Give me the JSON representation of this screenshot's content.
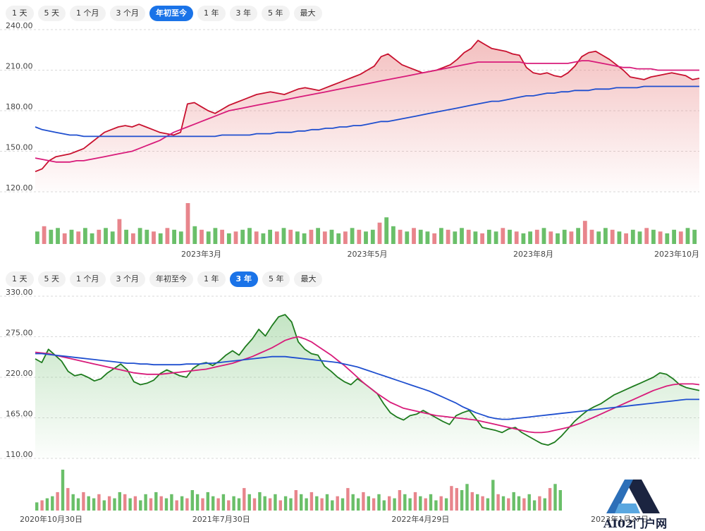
{
  "panels": [
    {
      "id": "ytd",
      "tabs": [
        "1 天",
        "5 天",
        "1 个月",
        "3 个月",
        "年初至今",
        "1 年",
        "3 年",
        "5 年",
        "最大"
      ],
      "active_tab": "年初至今"
    },
    {
      "id": "3y",
      "tabs": [
        "1 天",
        "5 天",
        "1 个月",
        "3 个月",
        "年初至今",
        "1 年",
        "3 年",
        "5 年",
        "最大"
      ],
      "active_tab": "3 年"
    }
  ],
  "chart_data": [
    {
      "type": "line",
      "title": "",
      "ylim": [
        120,
        240
      ],
      "y_ticks": [
        "240.00",
        "210.00",
        "180.00",
        "150.00",
        "120.00"
      ],
      "y_tick_values": [
        240,
        210,
        180,
        150,
        120
      ],
      "x_ticks": [
        "2023年3月",
        "2023年5月",
        "2023年8月",
        "2023年10月"
      ],
      "x_tick_positions": [
        0.25,
        0.5,
        0.75,
        0.97
      ],
      "colors": {
        "price": "#c8102e",
        "fill": "#e57373",
        "ma_short": "#d81b7a",
        "ma_long": "#1f4fcf",
        "vol_up": "#6abf69",
        "vol_down": "#e8858c"
      },
      "series": [
        {
          "name": "price",
          "values": [
            135,
            137,
            143,
            146,
            147,
            148,
            150,
            152,
            156,
            160,
            164,
            166,
            168,
            169,
            168,
            170,
            168,
            166,
            164,
            163,
            162,
            164,
            185,
            186,
            183,
            180,
            178,
            181,
            184,
            186,
            188,
            190,
            192,
            193,
            194,
            193,
            192,
            194,
            196,
            197,
            196,
            195,
            197,
            199,
            201,
            203,
            205,
            207,
            210,
            213,
            220,
            222,
            218,
            214,
            212,
            210,
            208,
            209,
            210,
            212,
            214,
            218,
            223,
            226,
            232,
            229,
            226,
            225,
            224,
            222,
            221,
            212,
            208,
            207,
            208,
            206,
            205,
            208,
            213,
            220,
            223,
            224,
            221,
            218,
            214,
            210,
            205,
            204,
            203,
            205,
            206,
            207,
            208,
            207,
            206,
            203,
            204
          ],
          "render": "area"
        },
        {
          "name": "MA short",
          "values": [
            145,
            144,
            143,
            142,
            142,
            142,
            143,
            143,
            144,
            145,
            146,
            147,
            148,
            149,
            150,
            152,
            154,
            156,
            158,
            161,
            164,
            166,
            168,
            170,
            172,
            174,
            176,
            178,
            180,
            181,
            182,
            183,
            184,
            185,
            186,
            187,
            188,
            189,
            190,
            191,
            192,
            193,
            194,
            195,
            196,
            197,
            198,
            199,
            200,
            201,
            202,
            203,
            204,
            205,
            206,
            207,
            208,
            209,
            210,
            211,
            212,
            213,
            214,
            215,
            216,
            216,
            216,
            216,
            216,
            216,
            216,
            215,
            215,
            215,
            215,
            215,
            215,
            215,
            216,
            217,
            217,
            216,
            215,
            214,
            213,
            212,
            212,
            211,
            211,
            211,
            210,
            210,
            210,
            210,
            210,
            210,
            210
          ],
          "render": "line"
        },
        {
          "name": "MA long",
          "values": [
            168,
            166,
            165,
            164,
            163,
            162,
            162,
            161,
            161,
            161,
            161,
            161,
            161,
            161,
            161,
            161,
            161,
            161,
            161,
            161,
            161,
            161,
            161,
            161,
            161,
            161,
            161,
            162,
            162,
            162,
            162,
            162,
            163,
            163,
            163,
            164,
            164,
            164,
            165,
            165,
            166,
            166,
            167,
            167,
            168,
            168,
            169,
            169,
            170,
            171,
            172,
            172,
            173,
            174,
            175,
            176,
            177,
            178,
            179,
            180,
            181,
            182,
            183,
            184,
            185,
            186,
            187,
            187,
            188,
            189,
            190,
            191,
            191,
            192,
            193,
            193,
            194,
            194,
            195,
            195,
            195,
            196,
            196,
            196,
            197,
            197,
            197,
            197,
            198,
            198,
            198,
            198,
            198,
            198,
            198,
            198,
            198
          ],
          "render": "line"
        }
      ],
      "volume": [
        7,
        10,
        8,
        9,
        6,
        8,
        7,
        9,
        6,
        8,
        9,
        7,
        14,
        8,
        6,
        9,
        8,
        7,
        6,
        9,
        8,
        7,
        23,
        10,
        8,
        7,
        9,
        8,
        6,
        7,
        8,
        9,
        7,
        6,
        8,
        7,
        9,
        8,
        7,
        6,
        8,
        9,
        7,
        8,
        6,
        7,
        9,
        8,
        7,
        8,
        12,
        15,
        10,
        8,
        7,
        9,
        8,
        7,
        6,
        9,
        8,
        7,
        9,
        8,
        7,
        6,
        8,
        7,
        9,
        8,
        7,
        6,
        7,
        8,
        9,
        7,
        6,
        8,
        7,
        9,
        13,
        8,
        7,
        9,
        8,
        7,
        6,
        8,
        7,
        9,
        8,
        7,
        6,
        8,
        7,
        9,
        8
      ],
      "volume_up": [
        true,
        false,
        true,
        true,
        false,
        true,
        false,
        true,
        true,
        false,
        true,
        true,
        false,
        true,
        false,
        true,
        true,
        false,
        true,
        false,
        true,
        true,
        false,
        true,
        false,
        true,
        true,
        false,
        true,
        false,
        true,
        true,
        false,
        true,
        true,
        false,
        true,
        false,
        true,
        true,
        false,
        true,
        false,
        true,
        true,
        false,
        true,
        false,
        true,
        true,
        false,
        true,
        true,
        false,
        true,
        false,
        true,
        true,
        false,
        true,
        false,
        true,
        true,
        false,
        true,
        false,
        true,
        true,
        false,
        true,
        false,
        true,
        true,
        false,
        true,
        false,
        true,
        true,
        false,
        true,
        false,
        false,
        true,
        true,
        false,
        true,
        false,
        true,
        true,
        false,
        true,
        false,
        true,
        true,
        false,
        true,
        true
      ]
    },
    {
      "type": "line",
      "title": "",
      "ylim": [
        110,
        330
      ],
      "y_ticks": [
        "330.00",
        "275.00",
        "220.00",
        "165.00",
        "110.00"
      ],
      "y_tick_values": [
        330,
        275,
        220,
        165,
        110
      ],
      "x_ticks": [
        "2020年10月30日",
        "2021年7月30日",
        "2022年4月29日",
        "2023年1月27日"
      ],
      "x_tick_positions": [
        0.0,
        0.28,
        0.58,
        0.88
      ],
      "colors": {
        "price": "#1e7b1e",
        "fill": "#7cc47c",
        "ma_short": "#d81b7a",
        "ma_long": "#1f4fcf",
        "vol_up": "#6abf69",
        "vol_down": "#e8858c"
      },
      "series": [
        {
          "name": "price",
          "values": [
            245,
            240,
            258,
            250,
            242,
            228,
            222,
            224,
            220,
            215,
            218,
            226,
            232,
            238,
            230,
            214,
            210,
            212,
            216,
            225,
            230,
            226,
            222,
            220,
            232,
            238,
            240,
            236,
            242,
            250,
            256,
            250,
            262,
            272,
            285,
            276,
            290,
            302,
            305,
            295,
            268,
            258,
            252,
            250,
            235,
            228,
            220,
            214,
            210,
            218,
            212,
            205,
            198,
            184,
            172,
            166,
            162,
            168,
            170,
            175,
            170,
            165,
            160,
            156,
            168,
            172,
            175,
            164,
            152,
            150,
            148,
            145,
            150,
            152,
            145,
            140,
            135,
            130,
            128,
            132,
            140,
            150,
            160,
            168,
            175,
            180,
            184,
            190,
            196,
            200,
            204,
            208,
            212,
            216,
            220,
            226,
            224,
            218,
            210,
            206,
            204,
            202
          ],
          "render": "area"
        },
        {
          "name": "MA short",
          "values": [
            254,
            253,
            252,
            250,
            248,
            246,
            244,
            242,
            240,
            238,
            236,
            234,
            232,
            230,
            228,
            226,
            225,
            224,
            224,
            224,
            225,
            226,
            227,
            228,
            229,
            230,
            231,
            233,
            235,
            237,
            239,
            242,
            245,
            248,
            252,
            256,
            260,
            265,
            270,
            273,
            275,
            272,
            268,
            262,
            256,
            250,
            243,
            236,
            228,
            220,
            212,
            205,
            198,
            192,
            186,
            182,
            178,
            176,
            174,
            172,
            170,
            168,
            167,
            166,
            165,
            164,
            163,
            162,
            160,
            158,
            156,
            154,
            152,
            150,
            148,
            146,
            145,
            145,
            146,
            148,
            150,
            152,
            155,
            158,
            162,
            166,
            170,
            174,
            178,
            182,
            186,
            190,
            194,
            198,
            202,
            205,
            208,
            210,
            211,
            211,
            211,
            210
          ],
          "render": "line"
        },
        {
          "name": "MA long",
          "values": [
            252,
            252,
            251,
            250,
            249,
            248,
            247,
            246,
            245,
            244,
            243,
            242,
            241,
            240,
            239,
            239,
            238,
            238,
            237,
            237,
            237,
            237,
            237,
            238,
            238,
            238,
            239,
            239,
            240,
            241,
            242,
            243,
            244,
            245,
            246,
            247,
            248,
            248,
            248,
            247,
            246,
            245,
            244,
            243,
            242,
            241,
            240,
            238,
            236,
            234,
            231,
            228,
            225,
            222,
            219,
            216,
            213,
            210,
            207,
            204,
            201,
            197,
            193,
            189,
            185,
            180,
            176,
            172,
            169,
            166,
            164,
            163,
            163,
            164,
            165,
            166,
            167,
            168,
            169,
            170,
            171,
            172,
            173,
            174,
            175,
            176,
            177,
            178,
            179,
            180,
            181,
            182,
            183,
            184,
            185,
            186,
            187,
            188,
            189,
            190,
            190,
            190
          ],
          "render": "line"
        }
      ],
      "volume": [
        8,
        10,
        12,
        14,
        18,
        40,
        22,
        16,
        12,
        18,
        14,
        12,
        16,
        10,
        14,
        12,
        18,
        16,
        12,
        14,
        10,
        16,
        12,
        18,
        14,
        12,
        16,
        10,
        14,
        12,
        20,
        16,
        12,
        18,
        14,
        12,
        16,
        10,
        14,
        12,
        22,
        16,
        12,
        18,
        14,
        12,
        16,
        10,
        14,
        12,
        20,
        16,
        12,
        18,
        14,
        12,
        16,
        10,
        14,
        12,
        22,
        16,
        12,
        18,
        14,
        12,
        16,
        10,
        14,
        12,
        20,
        16,
        12,
        18,
        14,
        12,
        16,
        10,
        14,
        12,
        24,
        22,
        20,
        26,
        18,
        16,
        14,
        12,
        30,
        16,
        14,
        12,
        18,
        14,
        12,
        16,
        10,
        14,
        12,
        22,
        26,
        20
      ],
      "volume_up": [
        true,
        false,
        true,
        true,
        false,
        true,
        false,
        true,
        true,
        false,
        true,
        true,
        false,
        true,
        false,
        true,
        true,
        false,
        true,
        false,
        true,
        true,
        false,
        true,
        false,
        true,
        true,
        false,
        true,
        false,
        true,
        true,
        false,
        true,
        true,
        false,
        true,
        false,
        true,
        true,
        false,
        true,
        false,
        true,
        true,
        false,
        true,
        false,
        true,
        true,
        false,
        true,
        true,
        false,
        true,
        false,
        true,
        true,
        false,
        true,
        false,
        true,
        true,
        false,
        true,
        false,
        true,
        true,
        false,
        true,
        false,
        true,
        true,
        false,
        true,
        false,
        true,
        true,
        false,
        true,
        false,
        false,
        true,
        true,
        false,
        true,
        false,
        true,
        true,
        false,
        true,
        false,
        true,
        true,
        false,
        true,
        true,
        false,
        true,
        false,
        true,
        true
      ]
    }
  ],
  "watermark": {
    "text": "AI02门户网",
    "icon": "ai02-logo"
  }
}
